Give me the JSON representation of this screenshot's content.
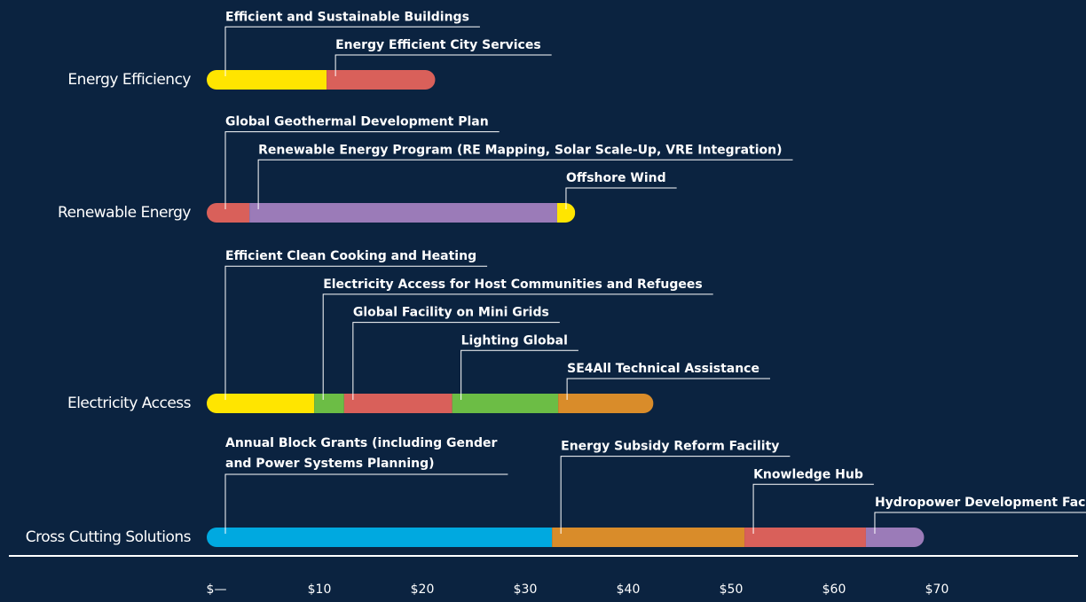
{
  "chart_data": {
    "type": "stacked-bar-annotated",
    "orientation": "horizontal",
    "xlim": [
      0,
      80
    ],
    "xticks": [
      {
        "value": 0,
        "label": "$—"
      },
      {
        "value": 10,
        "label": "$10"
      },
      {
        "value": 20,
        "label": "$20"
      },
      {
        "value": 30,
        "label": "$30"
      },
      {
        "value": 40,
        "label": "$40"
      },
      {
        "value": 50,
        "label": "$50"
      },
      {
        "value": 60,
        "label": "$60"
      },
      {
        "value": 70,
        "label": "$70"
      }
    ],
    "bars": [
      {
        "category": "Energy Efficiency",
        "segments": [
          {
            "name": "Efficient and Sustainable Buildings",
            "color": "#ffe500",
            "value": 10.7
          },
          {
            "name": "Energy Efficient City Services",
            "color": "#d9605a",
            "value": 9.6
          }
        ]
      },
      {
        "category": "Renewable Energy",
        "segments": [
          {
            "name": "Global Geothermal Development Plan",
            "color": "#d9605a",
            "value": 3.2
          },
          {
            "name": "Renewable Energy Program (RE Mapping, Solar Scale-Up, VRE Integration)",
            "color": "#9b7bb8",
            "value": 29.9
          },
          {
            "name": "Offshore Wind",
            "color": "#ffe500",
            "value": 0.8
          }
        ]
      },
      {
        "category": "Electricity Access",
        "segments": [
          {
            "name": "Efficient Clean Cooking and Heating",
            "color": "#ffe500",
            "value": 9.5
          },
          {
            "name": "Electricity Access for Host Communities and Refugees",
            "color": "#6cbd45",
            "value": 2.9
          },
          {
            "name": "Global Facility on Mini Grids",
            "color": "#d9605a",
            "value": 10.5
          },
          {
            "name": "Lighting Global",
            "color": "#6cbd45",
            "value": 10.3
          },
          {
            "name": "SE4All Technical Assistance",
            "color": "#d98c2a",
            "value": 8.3
          }
        ]
      },
      {
        "category": "Cross Cutting Solutions",
        "segments": [
          {
            "name": [
              "Annual Block Grants (including Gender",
              "and Power Systems Planning)"
            ],
            "color": "#00a9e0",
            "value": 32.6
          },
          {
            "name": "Energy Subsidy Reform Facility",
            "color": "#d98c2a",
            "value": 18.7
          },
          {
            "name": "Knowledge Hub",
            "color": "#d9605a",
            "value": 11.8
          },
          {
            "name": "Hydropower Development Facility",
            "color": "#9b7bb8",
            "value": 4.7
          }
        ]
      }
    ]
  }
}
